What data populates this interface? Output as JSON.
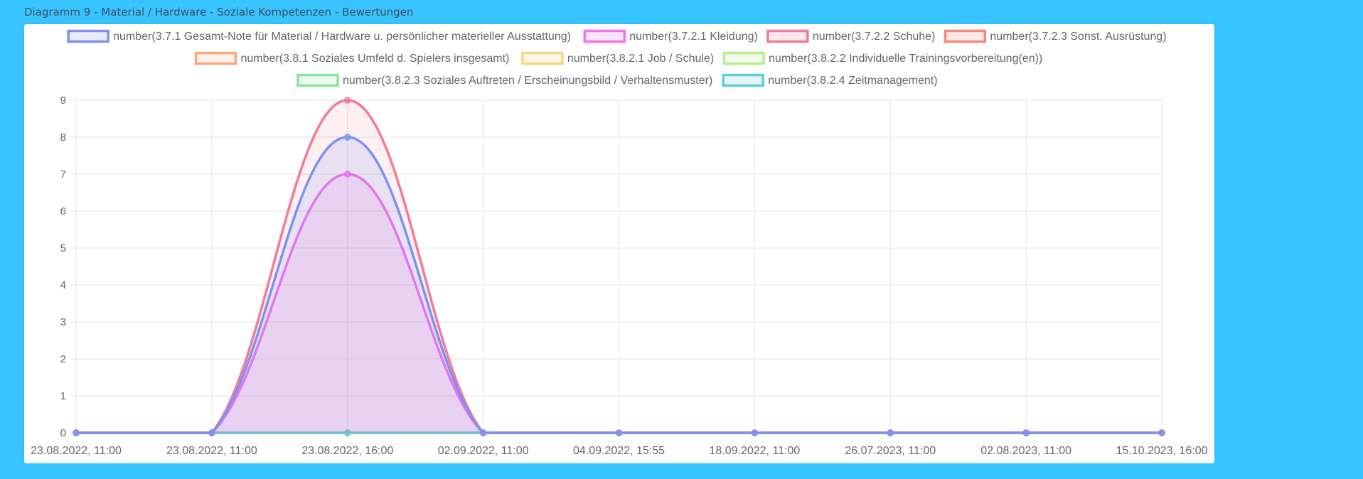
{
  "page": {
    "heading": "Diagramm 9 - Material / Hardware - Soziale Kompetenzen - Bewertungen"
  },
  "chart_data": {
    "type": "area",
    "x": [
      "23.08.2022, 11:00",
      "23.08.2022, 11:00",
      "23.08.2022, 16:00",
      "02.09.2022, 11:00",
      "04.09.2022, 15:55",
      "18.09.2022, 11:00",
      "26.07.2023, 11:00",
      "02.08.2023, 11:00",
      "15.10.2023, 16:00"
    ],
    "ylim": [
      0,
      9
    ],
    "yticks": [
      0,
      1,
      2,
      3,
      4,
      5,
      6,
      7,
      8,
      9
    ],
    "grid": true,
    "legend_position": "top",
    "series": [
      {
        "name": "number(3.7.1  Gesamt-Note für Material / Hardware u. persönlicher materieller Ausstattung)",
        "color": "#7b93ee",
        "fill": "rgba(123,147,238,0.15)",
        "values": [
          0,
          0,
          8,
          0,
          0,
          0,
          0,
          0,
          0
        ]
      },
      {
        "name": "number(3.7.2.1 Kleidung)",
        "color": "#f571f0",
        "fill": "rgba(245,113,240,0.15)",
        "values": [
          0,
          0,
          7,
          0,
          0,
          0,
          0,
          0,
          0
        ]
      },
      {
        "name": "number(3.7.2.2 Schuhe)",
        "color": "#f27b96",
        "fill": "rgba(242,123,150,0.12)",
        "values": [
          0,
          0,
          9,
          0,
          0,
          0,
          0,
          0,
          0
        ]
      },
      {
        "name": "number(3.7.2.3  Sonst. Ausrüstung)",
        "color": "#f5867c",
        "fill": "rgba(245,134,124,0.12)",
        "values": [
          0,
          0,
          0,
          0,
          0,
          0,
          0,
          0,
          0
        ]
      },
      {
        "name": "number(3.8.1  Soziales Umfeld d. Spielers insgesamt)",
        "color": "#f7a97e",
        "fill": "rgba(247,169,126,0.12)",
        "values": [
          0,
          0,
          0,
          0,
          0,
          0,
          0,
          0,
          0
        ]
      },
      {
        "name": "number(3.8.2.1 Job / Schule)",
        "color": "#f8d57f",
        "fill": "rgba(248,213,127,0.12)",
        "values": [
          0,
          0,
          0,
          0,
          0,
          0,
          0,
          0,
          0
        ]
      },
      {
        "name": "number(3.8.2.2 Individuelle Trainingsvorbereitung(en))",
        "color": "#b9ee8e",
        "fill": "rgba(185,238,142,0.12)",
        "values": [
          0,
          0,
          0,
          0,
          0,
          0,
          0,
          0,
          0
        ]
      },
      {
        "name": "number(3.8.2.3 Soziales Auftreten / Erscheinungsbild / Verhaltensmuster)",
        "color": "#8ce3a3",
        "fill": "rgba(140,227,163,0.12)",
        "values": [
          0,
          0,
          0,
          0,
          0,
          0,
          0,
          0,
          0
        ]
      },
      {
        "name": "number(3.8.2.4  Zeitmanagement)",
        "color": "#5fcfd4",
        "fill": "rgba(95,207,212,0.12)",
        "values": [
          0,
          0,
          0,
          0,
          0,
          0,
          0,
          0,
          0
        ]
      }
    ],
    "draw_order": [
      3,
      4,
      5,
      6,
      7,
      8,
      2,
      1,
      0
    ],
    "legend_rows": [
      [
        0,
        1,
        2,
        3
      ],
      [
        4,
        5,
        6
      ],
      [
        7,
        8
      ]
    ]
  }
}
